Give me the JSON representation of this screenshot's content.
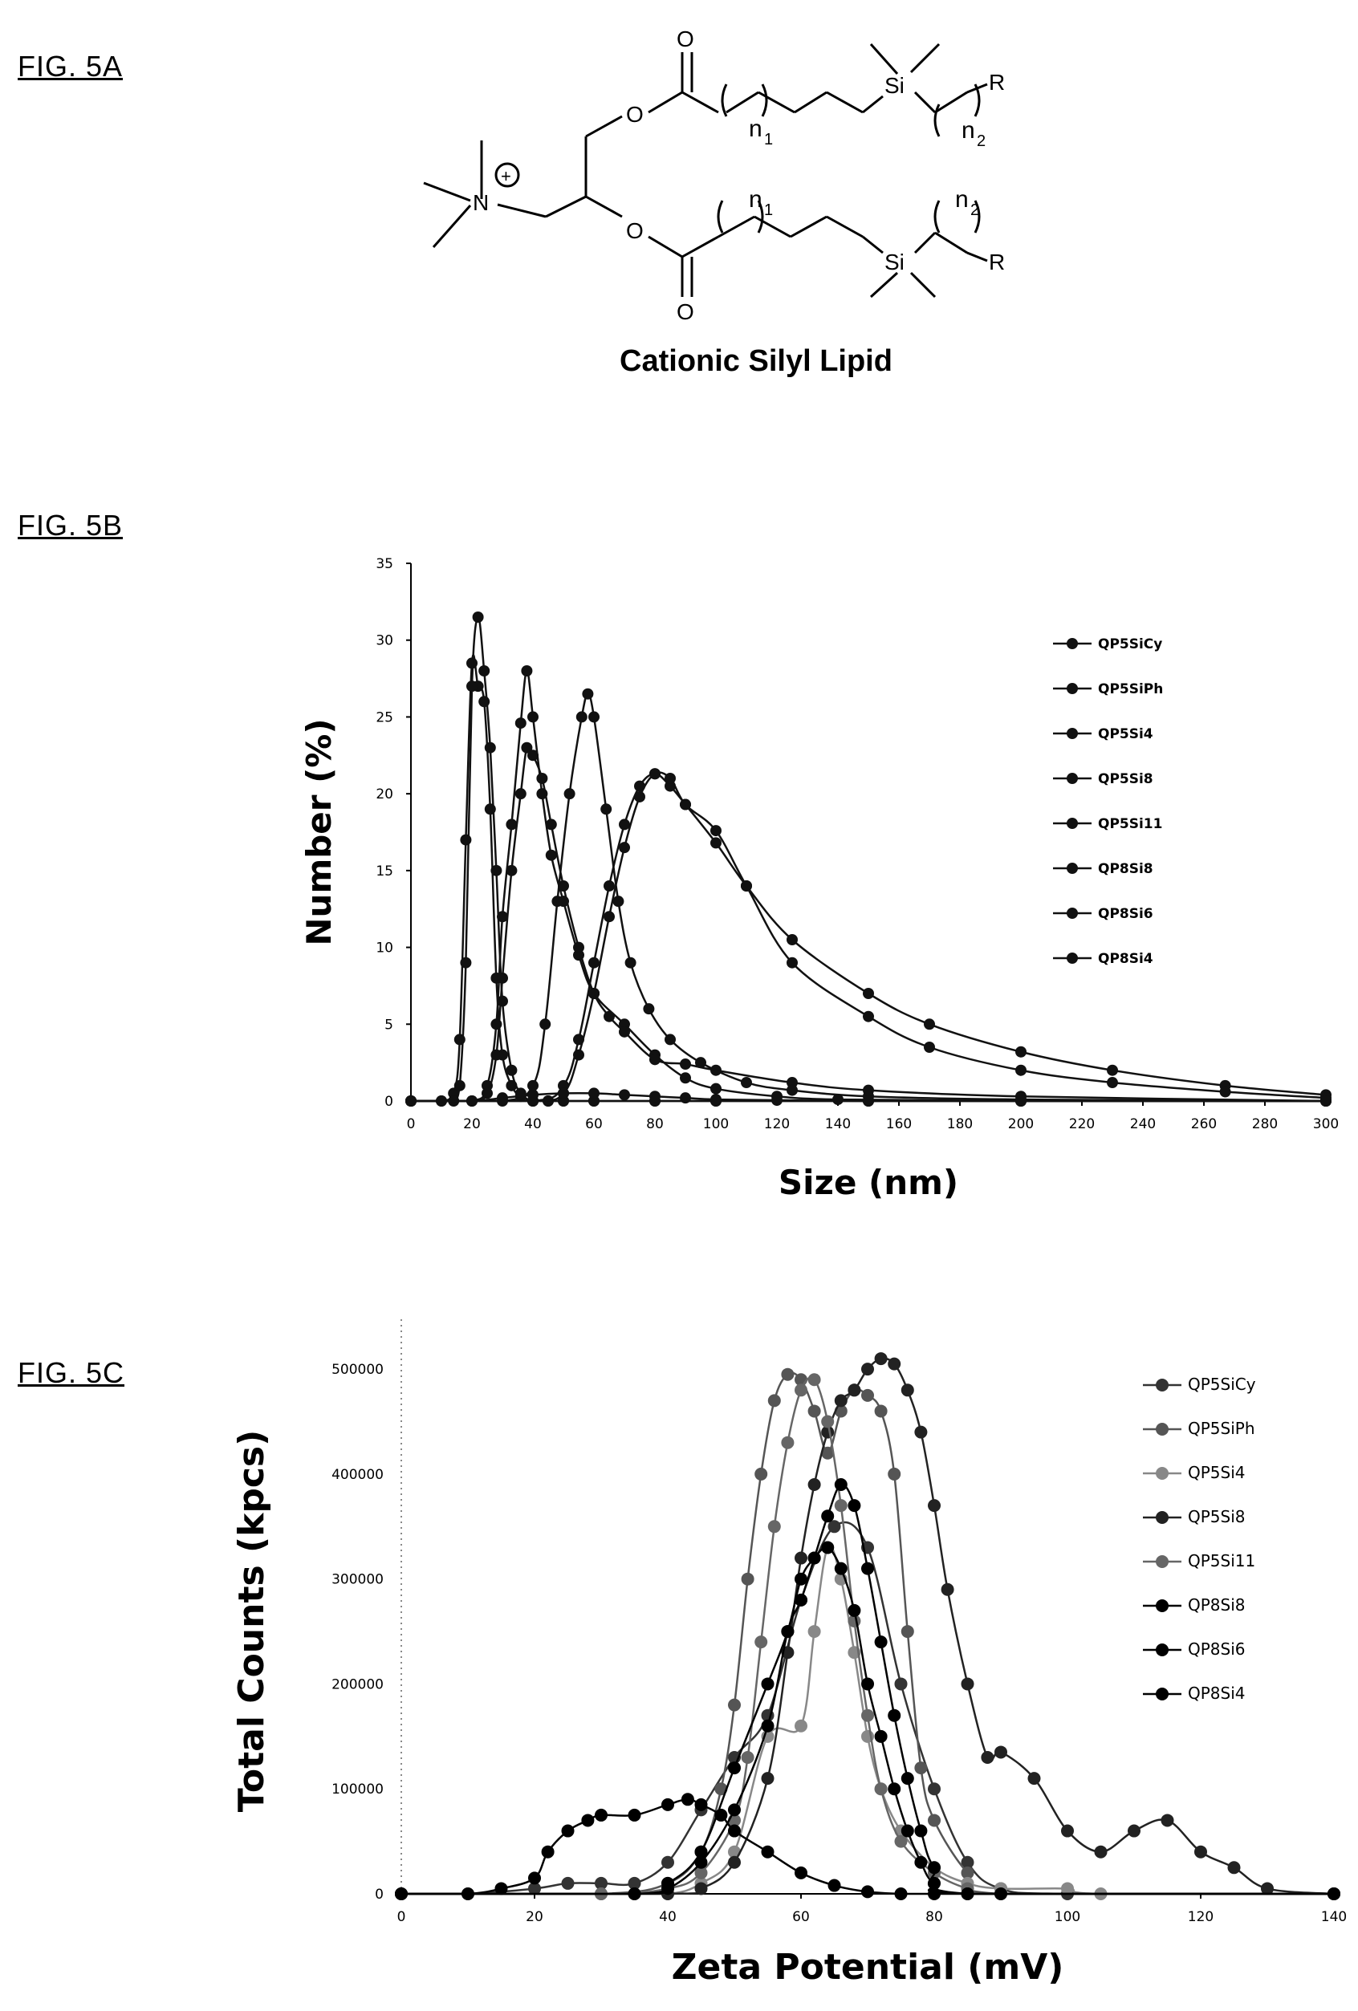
{
  "figures": {
    "fig5a_label": "FIG. 5A",
    "fig5b_label": "FIG. 5B",
    "fig5c_label": "FIG. 5C"
  },
  "structure": {
    "caption": "Cationic Silyl Lipid",
    "atoms": {
      "O": "O",
      "N": "N",
      "Si": "Si",
      "R": "R",
      "n1": "n",
      "n1_sub": "1",
      "n2": "n",
      "n2_sub": "2",
      "charge": "+"
    }
  },
  "chart_data": [
    {
      "type": "line",
      "xlabel": "Size (nm)",
      "ylabel": "Number (%)",
      "xlim": [
        0,
        300
      ],
      "ylim": [
        0,
        35
      ],
      "xticks": [
        0,
        20,
        40,
        60,
        80,
        100,
        120,
        140,
        160,
        180,
        200,
        220,
        240,
        260,
        280,
        300
      ],
      "yticks": [
        0,
        5,
        10,
        15,
        20,
        25,
        30,
        35
      ],
      "grid": false,
      "legend_position": "top-right",
      "series": [
        {
          "name": "QP5SiCy",
          "x": [
            0,
            10,
            14,
            16,
            18,
            20,
            22,
            24,
            26,
            28,
            30,
            33,
            36,
            40,
            45,
            50,
            60,
            80,
            100,
            150,
            200,
            300
          ],
          "y": [
            0,
            0,
            0.5,
            4,
            17,
            28.5,
            27,
            26,
            19,
            8,
            3,
            1,
            0.3,
            0,
            0,
            0,
            0,
            0,
            0,
            0,
            0,
            0
          ]
        },
        {
          "name": "QP5SiPh",
          "x": [
            0,
            10,
            14,
            16,
            18,
            20,
            22,
            24,
            26,
            28,
            30,
            33,
            36,
            40,
            45,
            50,
            60,
            80,
            100,
            150,
            200,
            300
          ],
          "y": [
            0,
            0,
            0,
            1,
            9,
            27,
            31.5,
            28,
            23,
            15,
            6.5,
            2,
            0.5,
            0,
            0,
            0,
            0,
            0,
            0,
            0,
            0,
            0
          ]
        },
        {
          "name": "QP5Si4",
          "x": [
            0,
            20,
            25,
            28,
            30,
            33,
            36,
            38,
            40,
            43,
            46,
            50,
            55,
            60,
            70,
            80,
            90,
            100,
            120,
            140,
            200,
            300
          ],
          "y": [
            0,
            0,
            1,
            5,
            12,
            18,
            24.6,
            28,
            25,
            20,
            16,
            13,
            9.5,
            7,
            5,
            3,
            1.5,
            0.8,
            0.3,
            0.1,
            0,
            0
          ]
        },
        {
          "name": "QP5Si8",
          "x": [
            0,
            20,
            25,
            28,
            30,
            33,
            36,
            38,
            40,
            43,
            46,
            50,
            55,
            60,
            65,
            70,
            80,
            90,
            100,
            125,
            150,
            200,
            300
          ],
          "y": [
            0,
            0,
            0.5,
            3,
            8,
            15,
            20,
            23,
            22.5,
            21,
            18,
            14,
            10,
            7,
            5.5,
            4.5,
            2.7,
            2.4,
            2,
            1.2,
            0.7,
            0.3,
            0
          ]
        },
        {
          "name": "QP5Si11",
          "x": [
            0,
            30,
            40,
            44,
            48,
            52,
            56,
            58,
            60,
            64,
            68,
            72,
            78,
            85,
            95,
            110,
            125,
            150,
            200,
            300
          ],
          "y": [
            0,
            0,
            1,
            5,
            13,
            20,
            25,
            26.5,
            25,
            19,
            13,
            9,
            6,
            4,
            2.5,
            1.2,
            0.7,
            0.3,
            0.1,
            0
          ]
        },
        {
          "name": "QP8Si8",
          "x": [
            0,
            40,
            50,
            55,
            60,
            65,
            70,
            75,
            80,
            85,
            90,
            100,
            110,
            125,
            150,
            170,
            200,
            230,
            267,
            300
          ],
          "y": [
            0,
            0,
            1,
            4,
            9,
            14,
            18,
            20.5,
            21.3,
            20.5,
            19.3,
            16.8,
            14,
            10.5,
            7,
            5,
            3.2,
            2,
            1,
            0.4
          ]
        },
        {
          "name": "QP8Si6",
          "x": [
            0,
            40,
            50,
            55,
            60,
            65,
            70,
            75,
            80,
            85,
            90,
            100,
            110,
            125,
            150,
            170,
            200,
            230,
            267,
            300
          ],
          "y": [
            0,
            0,
            0.5,
            3,
            7,
            12,
            16.5,
            19.8,
            21.3,
            21,
            19.3,
            17.6,
            14,
            9,
            5.5,
            3.5,
            2,
            1.2,
            0.6,
            0.2
          ]
        },
        {
          "name": "QP8Si4",
          "x": [
            0,
            20,
            30,
            40,
            50,
            60,
            70,
            80,
            90,
            100,
            120,
            150,
            200,
            300
          ],
          "y": [
            0,
            0,
            0.2,
            0.4,
            0.5,
            0.5,
            0.4,
            0.3,
            0.2,
            0.1,
            0.05,
            0,
            0,
            0
          ]
        }
      ]
    },
    {
      "type": "line",
      "xlabel": "Zeta Potential (mV)",
      "ylabel": "Total Counts (kpcs)",
      "xlim": [
        0,
        140
      ],
      "ylim": [
        0,
        520000
      ],
      "xticks": [
        0,
        20,
        40,
        60,
        80,
        100,
        120,
        140
      ],
      "yticks": [
        0,
        100000,
        200000,
        300000,
        400000,
        500000
      ],
      "grid": false,
      "legend_position": "top-right",
      "series": [
        {
          "name": "QP5SiCy",
          "x": [
            0,
            10,
            20,
            25,
            30,
            35,
            40,
            45,
            50,
            55,
            60,
            65,
            70,
            75,
            80,
            85,
            90,
            100,
            140
          ],
          "y": [
            0,
            0,
            5000,
            10000,
            10000,
            10000,
            30000,
            80000,
            130000,
            170000,
            280000,
            350000,
            330000,
            200000,
            100000,
            30000,
            5000,
            0,
            0
          ]
        },
        {
          "name": "QP5SiPh",
          "x": [
            0,
            30,
            40,
            45,
            48,
            50,
            52,
            54,
            56,
            58,
            60,
            62,
            64,
            66,
            68,
            70,
            72,
            74,
            76,
            78,
            80,
            85,
            90,
            140
          ],
          "y": [
            0,
            0,
            10000,
            40000,
            100000,
            180000,
            300000,
            400000,
            470000,
            495000,
            490000,
            460000,
            420000,
            460000,
            480000,
            475000,
            460000,
            400000,
            250000,
            120000,
            70000,
            20000,
            0,
            0
          ]
        },
        {
          "name": "QP5Si4",
          "x": [
            0,
            30,
            40,
            45,
            50,
            55,
            60,
            62,
            64,
            66,
            68,
            70,
            72,
            75,
            80,
            85,
            90,
            100,
            105,
            140
          ],
          "y": [
            0,
            0,
            0,
            10000,
            40000,
            150000,
            160000,
            250000,
            330000,
            300000,
            230000,
            150000,
            100000,
            60000,
            25000,
            10000,
            5000,
            5000,
            0,
            0
          ]
        },
        {
          "name": "QP5Si8",
          "x": [
            0,
            40,
            45,
            50,
            55,
            58,
            60,
            62,
            64,
            66,
            68,
            70,
            72,
            74,
            76,
            78,
            80,
            82,
            85,
            88,
            90,
            95,
            100,
            105,
            110,
            115,
            120,
            125,
            130,
            140
          ],
          "y": [
            0,
            0,
            5000,
            30000,
            110000,
            230000,
            320000,
            390000,
            440000,
            470000,
            480000,
            500000,
            510000,
            505000,
            480000,
            440000,
            370000,
            290000,
            200000,
            130000,
            135000,
            110000,
            60000,
            40000,
            60000,
            70000,
            40000,
            25000,
            5000,
            0
          ]
        },
        {
          "name": "QP5Si11",
          "x": [
            0,
            30,
            40,
            45,
            50,
            52,
            54,
            56,
            58,
            60,
            62,
            64,
            66,
            68,
            70,
            72,
            75,
            80,
            85,
            90,
            140
          ],
          "y": [
            0,
            0,
            5000,
            20000,
            70000,
            130000,
            240000,
            350000,
            430000,
            480000,
            490000,
            450000,
            370000,
            260000,
            170000,
            100000,
            50000,
            20000,
            5000,
            0,
            0
          ]
        },
        {
          "name": "QP8Si8",
          "x": [
            0,
            35,
            40,
            45,
            50,
            55,
            58,
            60,
            62,
            64,
            66,
            68,
            70,
            72,
            74,
            76,
            78,
            80,
            85,
            140
          ],
          "y": [
            0,
            0,
            10000,
            40000,
            120000,
            200000,
            250000,
            300000,
            320000,
            330000,
            310000,
            270000,
            200000,
            150000,
            100000,
            60000,
            30000,
            10000,
            0,
            0
          ]
        },
        {
          "name": "QP8Si6",
          "x": [
            0,
            35,
            40,
            45,
            50,
            55,
            58,
            60,
            62,
            64,
            66,
            68,
            70,
            72,
            74,
            76,
            78,
            80,
            85,
            140
          ],
          "y": [
            0,
            0,
            5000,
            30000,
            80000,
            160000,
            250000,
            280000,
            320000,
            360000,
            390000,
            370000,
            310000,
            240000,
            170000,
            110000,
            60000,
            25000,
            0,
            0
          ]
        },
        {
          "name": "QP8Si4",
          "x": [
            0,
            10,
            15,
            20,
            22,
            25,
            28,
            30,
            35,
            40,
            43,
            45,
            48,
            50,
            55,
            60,
            65,
            70,
            75,
            80,
            90,
            140
          ],
          "y": [
            0,
            0,
            5000,
            15000,
            40000,
            60000,
            70000,
            75000,
            75000,
            85000,
            90000,
            85000,
            75000,
            60000,
            40000,
            20000,
            8000,
            2000,
            0,
            0,
            0,
            0
          ]
        }
      ]
    }
  ]
}
